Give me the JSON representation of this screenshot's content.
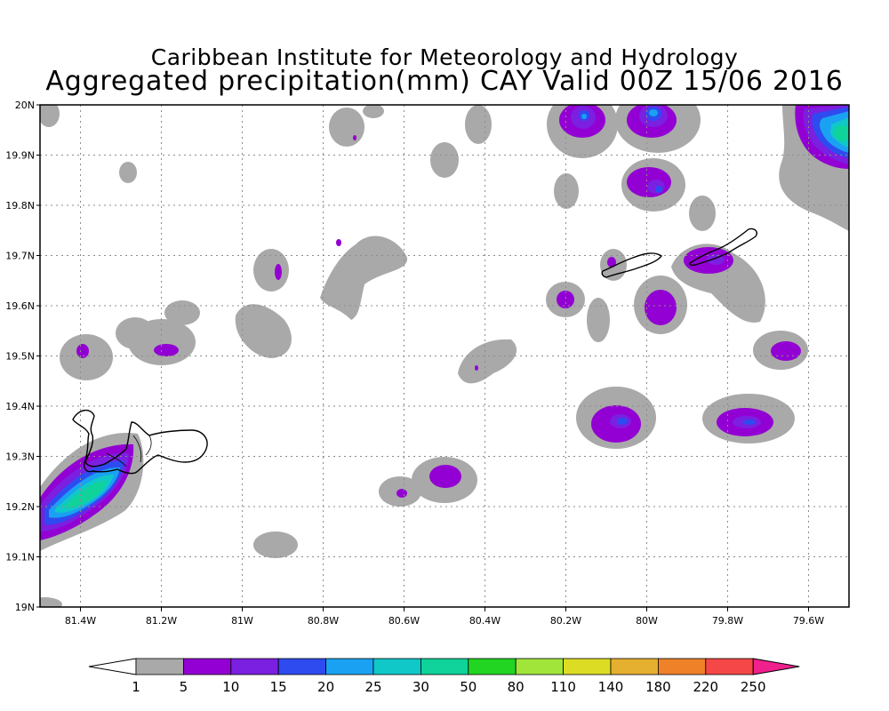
{
  "title_line1": "Caribbean Institute for Meteorology and Hydrology",
  "title_line2": "Aggregated precipitation(mm) CAY Valid 00Z 15/06 2016",
  "map": {
    "lon_range": [
      -81.5,
      -79.5
    ],
    "lat_range": [
      19.0,
      20.0
    ],
    "grid": true,
    "x_ticks": [
      "81.4W",
      "81.2W",
      "81W",
      "80.8W",
      "80.6W",
      "80.4W",
      "80.2W",
      "80W",
      "79.8W",
      "79.6W"
    ],
    "y_ticks": [
      "20N",
      "19.9N",
      "19.8N",
      "19.7N",
      "19.6N",
      "19.5N",
      "19.4N",
      "19.3N",
      "19.2N",
      "19.1N",
      "19N"
    ]
  },
  "colorbar": {
    "labels": [
      "1",
      "5",
      "10",
      "15",
      "20",
      "25",
      "30",
      "50",
      "80",
      "110",
      "140",
      "180",
      "220",
      "250"
    ],
    "colors": [
      "#a9a9a9",
      "#9300d3",
      "#7b1fe0",
      "#2e4bf0",
      "#1aa1f2",
      "#10c8c8",
      "#0fd39a",
      "#22d522",
      "#a1e53b",
      "#dcdc24",
      "#e5af2f",
      "#ef8129",
      "#f54747",
      "#f0208c"
    ]
  }
}
